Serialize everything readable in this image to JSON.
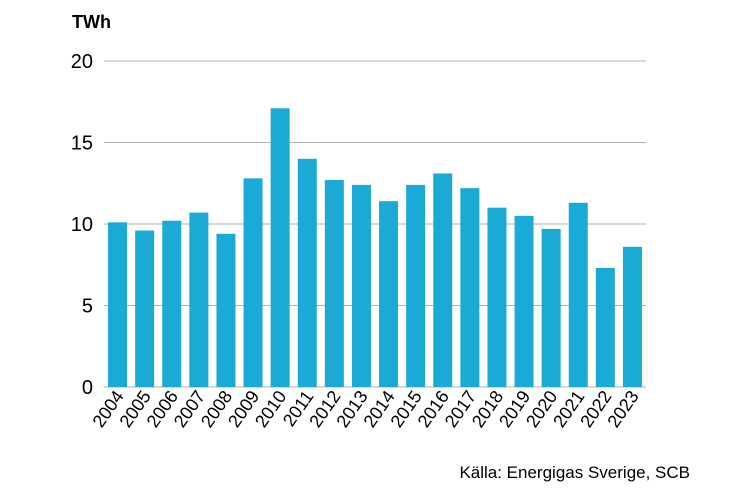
{
  "chart_data": {
    "type": "bar",
    "ylabel": "TWh",
    "ylim": [
      0,
      20
    ],
    "yticks": [
      0,
      5,
      10,
      15,
      20
    ],
    "grid": true,
    "categories": [
      "2004",
      "2005",
      "2006",
      "2007",
      "2008",
      "2009",
      "2010",
      "2011",
      "2012",
      "2013",
      "2014",
      "2015",
      "2016",
      "2017",
      "2018",
      "2019",
      "2020",
      "2021",
      "2022",
      "2023"
    ],
    "values": [
      10.1,
      9.6,
      10.2,
      10.7,
      9.4,
      12.8,
      17.1,
      14.0,
      12.7,
      12.4,
      11.4,
      12.4,
      13.1,
      12.2,
      11.0,
      10.5,
      9.7,
      11.3,
      7.3,
      8.6
    ],
    "bar_color": "#1ba9d5",
    "gridline_color": "#b3b3b3",
    "source": "Källa: Energigas Sverige, SCB"
  }
}
